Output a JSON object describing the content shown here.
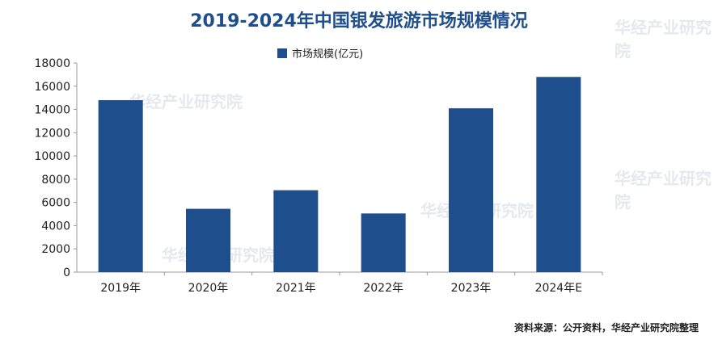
{
  "title": "2019-2024年中国银发旅游市场规模情况",
  "source": "资料来源：公开资料，华经产业研究院整理",
  "watermark": "华经产业研究院",
  "chart_data": {
    "type": "bar",
    "categories": [
      "2019年",
      "2020年",
      "2021年",
      "2022年",
      "2023年",
      "2024年E"
    ],
    "series": [
      {
        "name": "市场规模(亿元)",
        "values": [
          14800,
          5450,
          7050,
          5050,
          14100,
          16800
        ]
      }
    ],
    "ylim": [
      0,
      18000
    ],
    "yticks": [
      0,
      2000,
      4000,
      6000,
      8000,
      10000,
      12000,
      14000,
      16000,
      18000
    ],
    "grid": false,
    "legend": "top-center",
    "color": "#1f4e8c"
  }
}
